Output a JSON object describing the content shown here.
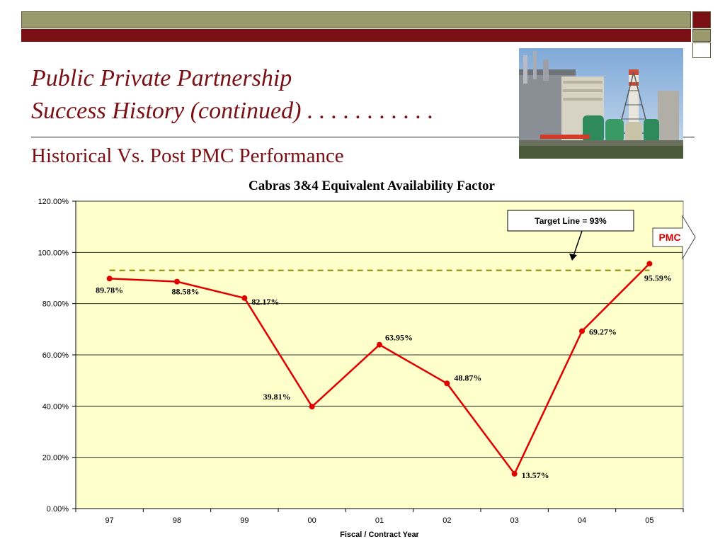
{
  "slide": {
    "title_line1": "Public Private Partnership",
    "title_line2": "Success History (continued) . . . . . . . . . . .",
    "subtitle": "Historical Vs. Post PMC Performance",
    "photo_icon": "power-plant-photo",
    "colors": {
      "accent": "#7a0f14",
      "band": "#9b9a6e",
      "plot_bg": "#ffffcc",
      "series": "#e00000",
      "target": "#8a8a00"
    }
  },
  "chart_data": {
    "type": "line",
    "title": "Cabras 3&4 Equivalent Availability Factor",
    "xlabel": "Fiscal / Contract Year",
    "ylabel": "",
    "categories": [
      "97",
      "98",
      "99",
      "00",
      "01",
      "02",
      "03",
      "04",
      "05"
    ],
    "series": [
      {
        "values": [
          89.78,
          88.58,
          82.17,
          39.81,
          63.95,
          48.87,
          13.57,
          69.27,
          95.59
        ],
        "labels": [
          "89.78%",
          "88.58%",
          "82.17%",
          "39.81%",
          "63.95%",
          "48.87%",
          "13.57%",
          "69.27%",
          "95.59%"
        ]
      }
    ],
    "ylim": [
      0,
      120
    ],
    "yticks": [
      0,
      20,
      40,
      60,
      80,
      100,
      120
    ],
    "ytick_labels": [
      "0.00%",
      "20.00%",
      "40.00%",
      "60.00%",
      "80.00%",
      "100.00%",
      "120.00%"
    ],
    "grid": true,
    "target_value": 93,
    "target_label": "Target Line = 93%",
    "pmc_label": "PMC"
  }
}
